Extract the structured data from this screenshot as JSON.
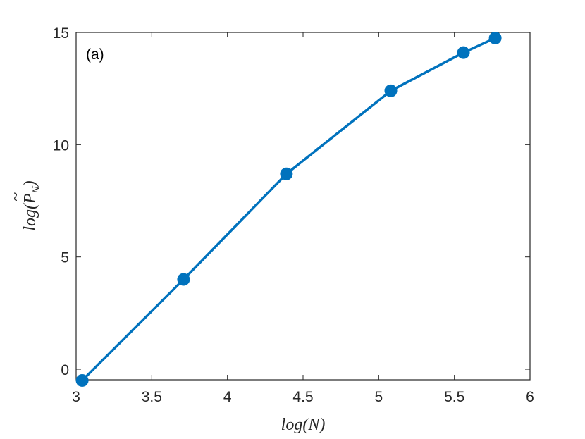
{
  "chart_data": {
    "type": "line",
    "title": "",
    "panel_label": "(a)",
    "xlabel": "log(N)",
    "ylabel": "log(P̃_N)",
    "xlim": [
      3,
      6
    ],
    "ylim": [
      -0.47,
      15
    ],
    "xticks": [
      3,
      3.5,
      4,
      4.5,
      5,
      5.5,
      6
    ],
    "xtick_labels": [
      "3",
      "3.5",
      "4",
      "4.5",
      "5",
      "5.5",
      "6"
    ],
    "yticks": [
      0,
      5,
      10,
      15
    ],
    "ytick_labels": [
      "0",
      "5",
      "10",
      "15"
    ],
    "grid": false,
    "legend": null,
    "series": [
      {
        "name": "log(P_N)",
        "color": "#0072BD",
        "marker": "circle",
        "x": [
          3.04,
          3.71,
          4.39,
          5.08,
          5.56,
          5.77
        ],
        "y": [
          -0.5,
          4.0,
          8.7,
          12.4,
          14.1,
          14.75
        ]
      }
    ]
  }
}
